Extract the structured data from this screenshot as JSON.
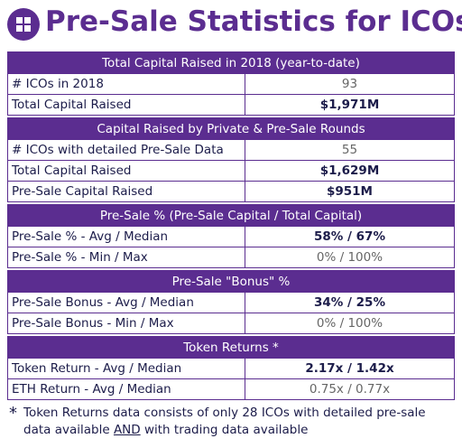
{
  "header": {
    "title": "Pre-Sale Statistics for ICOs"
  },
  "sections": [
    {
      "title": "Total Capital Raised in 2018 (year-to-date)",
      "rows": [
        {
          "label": "# ICOs in 2018",
          "value": "93",
          "bold": false
        },
        {
          "label": "Total Capital Raised",
          "value": "$1,971M",
          "bold": true
        }
      ]
    },
    {
      "title": "Capital Raised by Private & Pre-Sale Rounds",
      "rows": [
        {
          "label": "# ICOs with detailed Pre-Sale Data",
          "value": "55",
          "bold": false
        },
        {
          "label": "Total Capital Raised",
          "value": "$1,629M",
          "bold": true
        },
        {
          "label": "Pre-Sale Capital Raised",
          "value": "$951M",
          "bold": true
        }
      ]
    },
    {
      "title": "Pre-Sale % (Pre-Sale Capital / Total Capital)",
      "rows": [
        {
          "label": "Pre-Sale % - Avg / Median",
          "value": "58% / 67%",
          "bold": true
        },
        {
          "label": "Pre-Sale % - Min / Max",
          "value": "0% / 100%",
          "bold": false
        }
      ]
    },
    {
      "title": "Pre-Sale \"Bonus\" %",
      "rows": [
        {
          "label": "Pre-Sale Bonus - Avg / Median",
          "value": "34% / 25%",
          "bold": true
        },
        {
          "label": "Pre-Sale Bonus - Min / Max",
          "value": "0% / 100%",
          "bold": false
        }
      ]
    },
    {
      "title": "Token Returns *",
      "rows": [
        {
          "label": "Token Return - Avg / Median",
          "value": "2.17x / 1.42x",
          "bold": true
        },
        {
          "label": "ETH Return - Avg / Median",
          "value": "0.75x / 0.77x",
          "bold": false
        }
      ]
    }
  ],
  "footnote": {
    "marker": "*",
    "before": "Token Returns data consists of only 28 ICOs with detailed pre-sale data available ",
    "emphasis": "AND",
    "after": " with trading data available"
  }
}
